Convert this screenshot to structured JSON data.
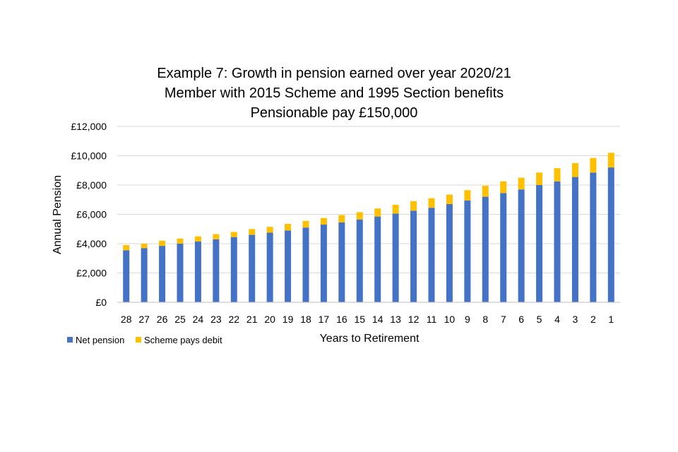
{
  "chart_data": {
    "type": "bar",
    "stacked": true,
    "title": [
      "Example 7: Growth in pension earned over year 2020/21",
      "Member with 2015 Scheme and 1995 Section benefits",
      "Pensionable pay £150,000"
    ],
    "xlabel": "Years to Retirement",
    "ylabel": "Annual Pension",
    "ylim": [
      0,
      12000
    ],
    "yticks": [
      0,
      2000,
      4000,
      6000,
      8000,
      10000,
      12000
    ],
    "ytick_labels": [
      "£0",
      "£2,000",
      "£4,000",
      "£6,000",
      "£8,000",
      "£10,000",
      "£12,000"
    ],
    "grid": true,
    "legend_position": "bottom-left",
    "categories": [
      "28",
      "27",
      "26",
      "25",
      "24",
      "23",
      "22",
      "21",
      "20",
      "19",
      "18",
      "17",
      "16",
      "15",
      "14",
      "13",
      "12",
      "11",
      "10",
      "9",
      "8",
      "7",
      "6",
      "5",
      "4",
      "3",
      "2",
      "1"
    ],
    "series": [
      {
        "name": "Net pension",
        "color": "#4472C4",
        "values": [
          3550,
          3700,
          3850,
          4000,
          4150,
          4300,
          4450,
          4600,
          4750,
          4900,
          5100,
          5300,
          5450,
          5650,
          5850,
          6050,
          6250,
          6450,
          6700,
          6950,
          7200,
          7450,
          7700,
          8000,
          8250,
          8550,
          8850,
          9200
        ]
      },
      {
        "name": "Scheme pays debit",
        "color": "#FFC000",
        "values": [
          350,
          300,
          350,
          350,
          350,
          350,
          350,
          400,
          400,
          450,
          450,
          450,
          500,
          500,
          550,
          600,
          650,
          650,
          650,
          700,
          750,
          800,
          800,
          850,
          900,
          950,
          1000,
          1000
        ]
      }
    ]
  }
}
